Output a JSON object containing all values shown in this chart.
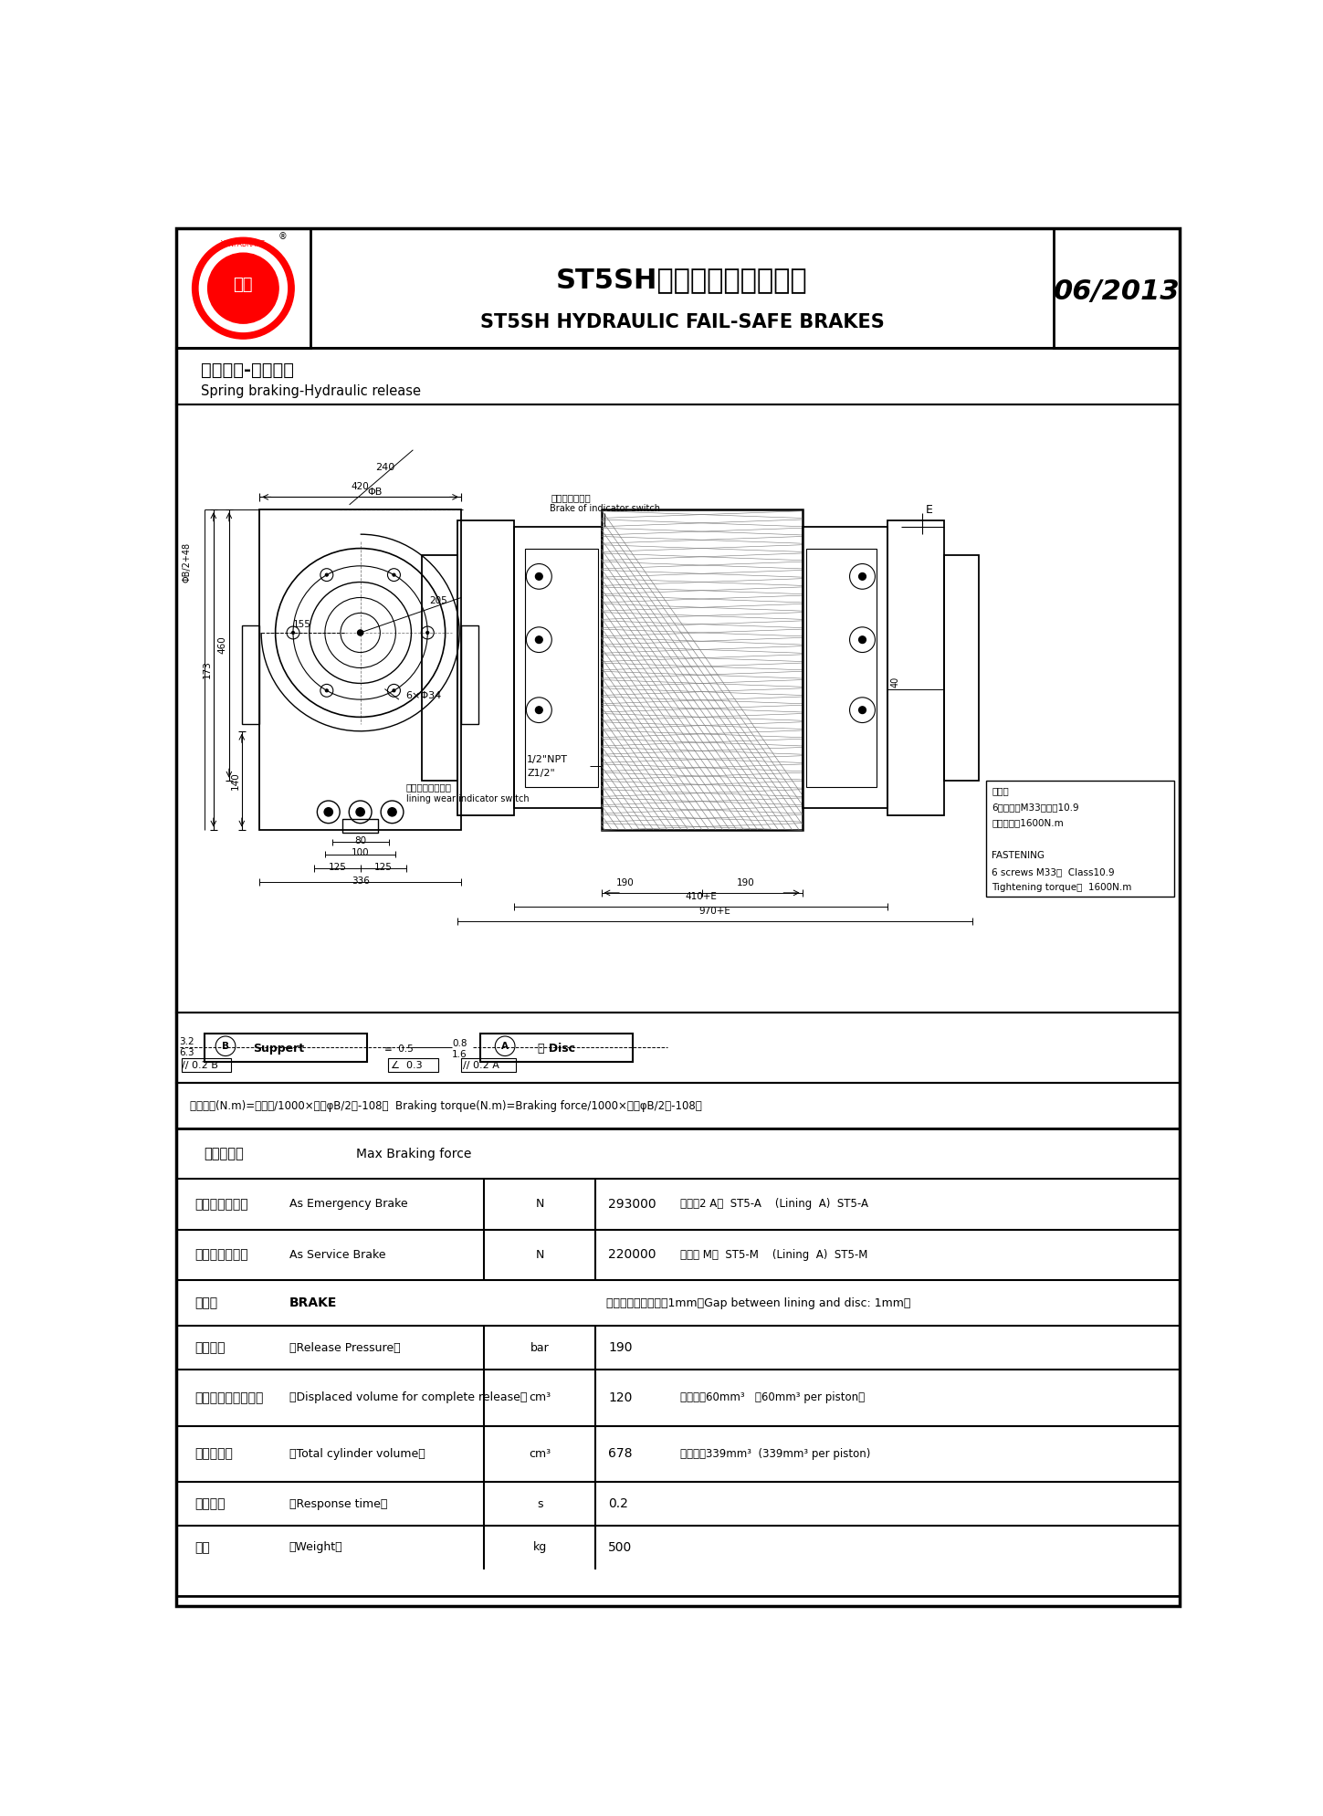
{
  "title_cn": "ST5SH液压失效保护制动器",
  "title_en": "ST5SH HYDRAULIC FAIL-SAFE BRAKES",
  "date": "06/2013",
  "subtitle_cn": "弹簧制动-液压释放",
  "subtitle_en": "Spring braking-Hydraulic release",
  "bg_color": "#ffffff",
  "border_color": "#000000",
  "formula": "制动力矩(N.m)=制动力/1000×［（φB/2）-108］  Braking torque(N.m)=Braking force/1000×［（φB/2）-108］",
  "fastening_lines": [
    "连接件",
    "6个螺丝钉M33；等级10.9",
    "上紧力矩：1600N.m",
    "",
    "FASTENING",
    "6 screws M33；  Class10.9",
    "Tightening torque；  1600N.m"
  ],
  "table_rows": [
    {
      "cn": "最大制动力",
      "en": "Max Braking force",
      "unit": "",
      "val": "",
      "extra": "",
      "type": "header"
    },
    {
      "cn": "用于紧急制动时",
      "en": "As Emergency Brake",
      "unit": "N",
      "val": "293000",
      "extra": "（躯射2 A）  ST5-A    (Lining  A)  ST5-A",
      "type": "data"
    },
    {
      "cn": "用于工作制动时",
      "en": "As Service Brake",
      "unit": "N",
      "val": "220000",
      "extra": "（躯射 M）  ST5-M    (Lining  A)  ST5-M",
      "type": "data"
    },
    {
      "cn": "制动器",
      "en": "BRAKE",
      "unit": "",
      "val": "躯射与盘间的间隙：1mm（Gap between lining and disc: 1mm）",
      "extra": "",
      "type": "brake"
    },
    {
      "cn": "释放压力",
      "en": "（Release Pressure）",
      "unit": "bar",
      "val": "190",
      "extra": "",
      "type": "data"
    },
    {
      "cn": "完全释放的移位容量",
      "en": "（Displaced volume for complete release）",
      "unit": "cm³",
      "val": "120",
      "extra": "每个活塞60mm³   （60mm³ per piston）",
      "type": "data"
    },
    {
      "cn": "总油缸容积",
      "en": "（Total cylinder volume）",
      "unit": "cm³",
      "val": "678",
      "extra": "每个活塞339mm³  (339mm³ per piston)",
      "type": "data"
    },
    {
      "cn": "响应时间",
      "en": "（Response time）",
      "unit": "s",
      "val": "0.2",
      "extra": "",
      "type": "data"
    },
    {
      "cn": "重量",
      "en": "（Weight）",
      "unit": "kg",
      "val": "500",
      "extra": "",
      "type": "data"
    }
  ]
}
